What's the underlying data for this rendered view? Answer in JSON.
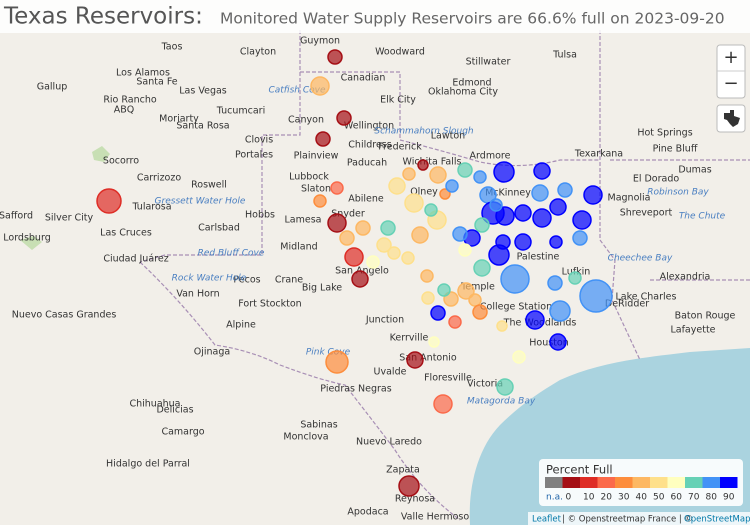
{
  "title": "Texas Reservoirs:",
  "subtitle": "Monitored Water Supply Reservoirs are 66.6% full on 2023-09-20",
  "zoom_in": "+",
  "zoom_out": "−",
  "legend": {
    "title": "Percent Full",
    "na_label": "n.a.",
    "bins": [
      0,
      10,
      20,
      30,
      40,
      50,
      60,
      70,
      80,
      90
    ],
    "colors": [
      "#808080",
      "#a50f15",
      "#de2d26",
      "#fb6a4a",
      "#fd8d3c",
      "#fdb863",
      "#fee08b",
      "#ffffbf",
      "#66d1b5",
      "#4292f6",
      "#0000ff"
    ]
  },
  "attribution": [
    "Leaflet",
    "| © Openstreetmap France | ©",
    "OpenStreetMap"
  ],
  "places": [
    "Taos",
    "Clayton",
    "Guymon",
    "Woodward",
    "Stillwater",
    "Tulsa",
    "Los Alamos",
    "Santa Fe",
    "Las Vegas",
    "Gallup",
    "Canadian",
    "Edmond",
    "Oklahoma City",
    "Elk City",
    "Rio Rancho",
    "ABQ",
    "Moriarty",
    "Tucumcari",
    "Santa Rosa",
    "Canyon",
    "Wellington",
    "Clovis",
    "Lawton",
    "Ardmore",
    "Childress",
    "Socorro",
    "Portales",
    "Plainview",
    "Frederick",
    "Lubbock",
    "Paducah",
    "Wichita Falls",
    "Carrizozo",
    "Roswell",
    "Slaton",
    "Olney",
    "McKinney",
    "Texarkana",
    "Hot Springs",
    "Pine Bluff",
    "Tularosa",
    "Hobbs",
    "Carlsbad",
    "Lamesa",
    "Snyder",
    "Abilene",
    "Las Cruces",
    "Ciudad Juárez",
    "Midland",
    "Pecos",
    "Crane",
    "Big Lake",
    "San Angelo",
    "Fort Stockton",
    "Van Horn",
    "Alpine",
    "Junction",
    "Kerrville",
    "Temple",
    "College Station",
    "The Woodlands",
    "Houston",
    "Palestine",
    "Lufkin",
    "Shreveport",
    "Alexandria",
    "Baton Rouge",
    "Lafayette",
    "DeRidder",
    "Ojinaga",
    "Chihuahua",
    "Delicias",
    "Camargo",
    "Piedras Negras",
    "Uvalde",
    "San Antonio",
    "Floresville",
    "Victoria",
    "Nuevo Laredo",
    "Zapata",
    "Reynosa",
    "Monclova",
    "Sabinas",
    "Hidalgo del Parral",
    "Apodaca",
    "Valle Hermoso",
    "Lordsburg",
    "Safford",
    "Silver City",
    "Nuevo Casas Grandes",
    "Magnolia",
    "El Dorado",
    "Dumas",
    "Lake Charles"
  ],
  "water_labels": [
    "Catfish Cove",
    "Gressett Water Hole",
    "Red Bluff Cove",
    "Rock Water Hole",
    "Pink Cove",
    "Matagorda Bay",
    "Schammahorn Slough",
    "Robinson Bay",
    "The Chute",
    "Cheechee Bay"
  ],
  "reservoirs": [
    {
      "percent": 5
    },
    {
      "percent": 45
    },
    {
      "percent": 5
    },
    {
      "percent": 5
    },
    {
      "percent": 10
    },
    {
      "percent": 5
    },
    {
      "percent": 45
    },
    {
      "percent": 40
    },
    {
      "percent": 55
    },
    {
      "percent": 55
    },
    {
      "percent": 20
    },
    {
      "percent": 30
    },
    {
      "percent": 5
    },
    {
      "percent": 45
    },
    {
      "percent": 40
    },
    {
      "percent": 70
    },
    {
      "percent": 50
    },
    {
      "percent": 10
    },
    {
      "percent": 5
    },
    {
      "percent": 60
    },
    {
      "percent": 55
    },
    {
      "percent": 50
    },
    {
      "percent": 45
    },
    {
      "percent": 50
    },
    {
      "percent": 75
    },
    {
      "percent": 30
    },
    {
      "percent": 80
    },
    {
      "percent": 70
    },
    {
      "percent": 85
    },
    {
      "percent": 80
    },
    {
      "percent": 95
    },
    {
      "percent": 90
    },
    {
      "percent": 70
    },
    {
      "percent": 90
    },
    {
      "percent": 95
    },
    {
      "percent": 95
    },
    {
      "percent": 95
    },
    {
      "percent": 80
    },
    {
      "percent": 95
    },
    {
      "percent": 85
    },
    {
      "percent": 90
    },
    {
      "percent": 95
    },
    {
      "percent": 90
    },
    {
      "percent": 85
    },
    {
      "percent": 90
    },
    {
      "percent": 90
    },
    {
      "percent": 90
    },
    {
      "percent": 80
    },
    {
      "percent": 60
    },
    {
      "percent": 70
    },
    {
      "percent": 90
    },
    {
      "percent": 85
    },
    {
      "percent": 85
    },
    {
      "percent": 70
    },
    {
      "percent": 85
    },
    {
      "percent": 85
    },
    {
      "percent": 90
    },
    {
      "percent": 45
    },
    {
      "percent": 40
    },
    {
      "percent": 35
    },
    {
      "percent": 45
    },
    {
      "percent": 95
    },
    {
      "percent": 20
    },
    {
      "percent": 70
    },
    {
      "percent": 50
    },
    {
      "percent": 60
    },
    {
      "percent": 95
    },
    {
      "percent": 75
    },
    {
      "percent": 5
    },
    {
      "percent": 35
    },
    {
      "percent": 25
    },
    {
      "percent": 5
    },
    {
      "percent": 60
    },
    {
      "percent": 55
    },
    {
      "percent": 40
    },
    {
      "percent": 85
    }
  ]
}
